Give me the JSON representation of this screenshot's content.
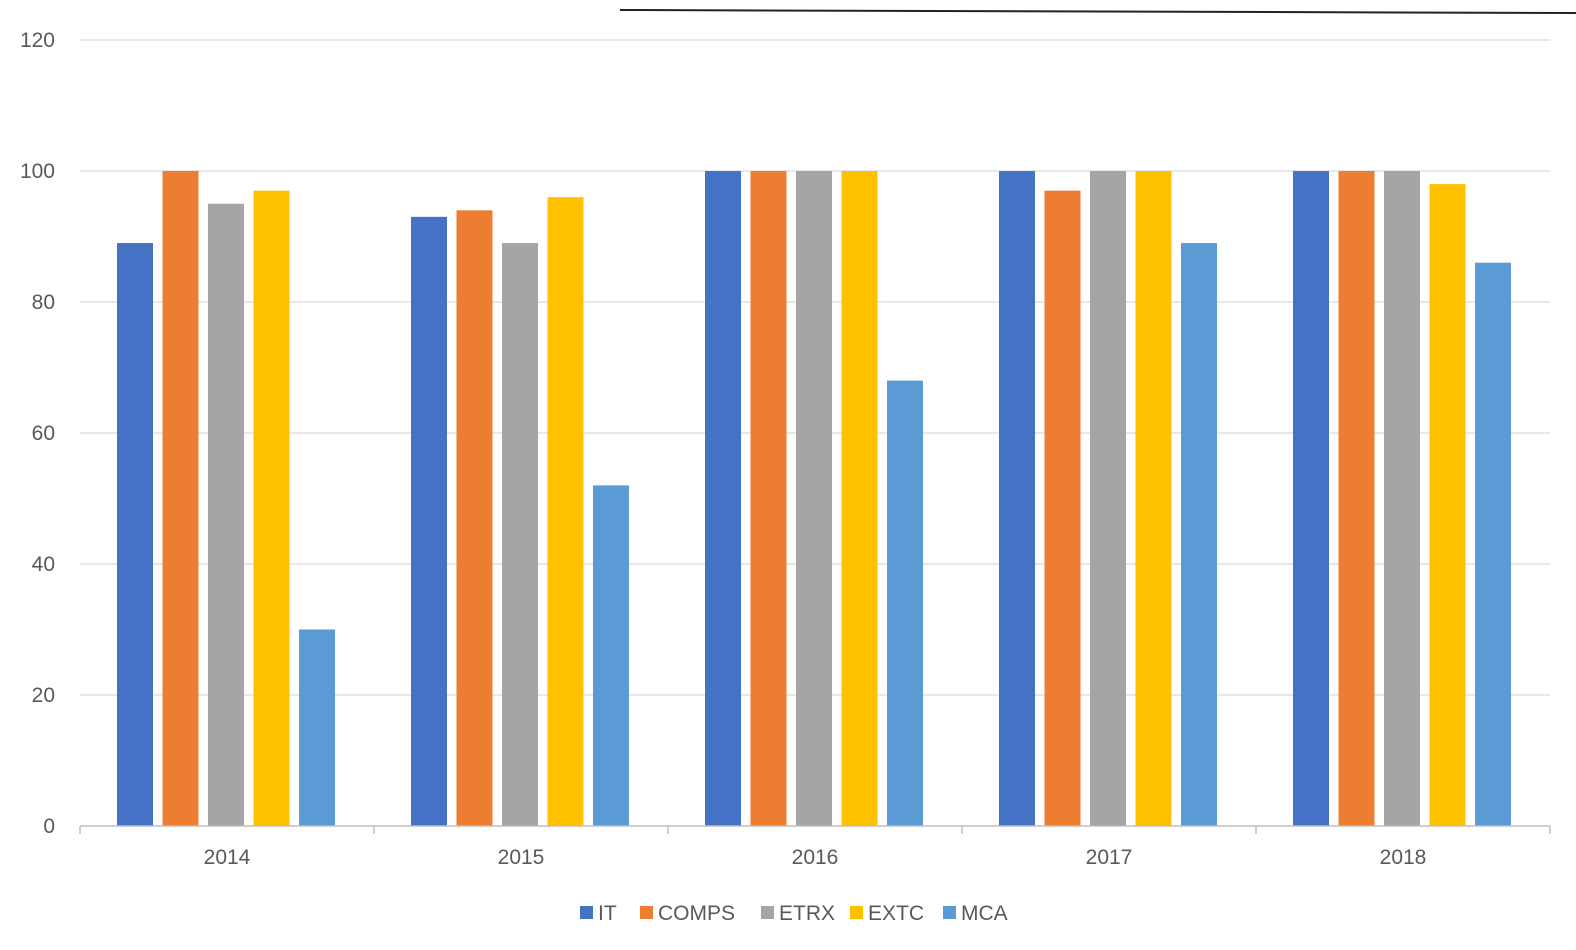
{
  "chart_data": {
    "type": "bar",
    "title": "",
    "xlabel": "",
    "ylabel": "",
    "ylim": [
      0,
      120
    ],
    "yticks": [
      0,
      20,
      40,
      60,
      80,
      100,
      120
    ],
    "categories": [
      "2014",
      "2015",
      "2016",
      "2017",
      "2018"
    ],
    "series": [
      {
        "name": "IT",
        "color": "#4472C4",
        "values": [
          89,
          93,
          100,
          100,
          100
        ]
      },
      {
        "name": "COMPS",
        "color": "#ED7D31",
        "values": [
          100,
          94,
          100,
          97,
          100
        ]
      },
      {
        "name": "ETRX",
        "color": "#A5A5A5",
        "values": [
          95,
          89,
          100,
          100,
          100
        ]
      },
      {
        "name": "EXTC",
        "color": "#FFC000",
        "values": [
          97,
          96,
          100,
          100,
          98
        ]
      },
      {
        "name": "MCA",
        "color": "#5B9BD5",
        "values": [
          30,
          52,
          68,
          89,
          86
        ]
      }
    ],
    "grid": true,
    "legend_position": "bottom"
  }
}
